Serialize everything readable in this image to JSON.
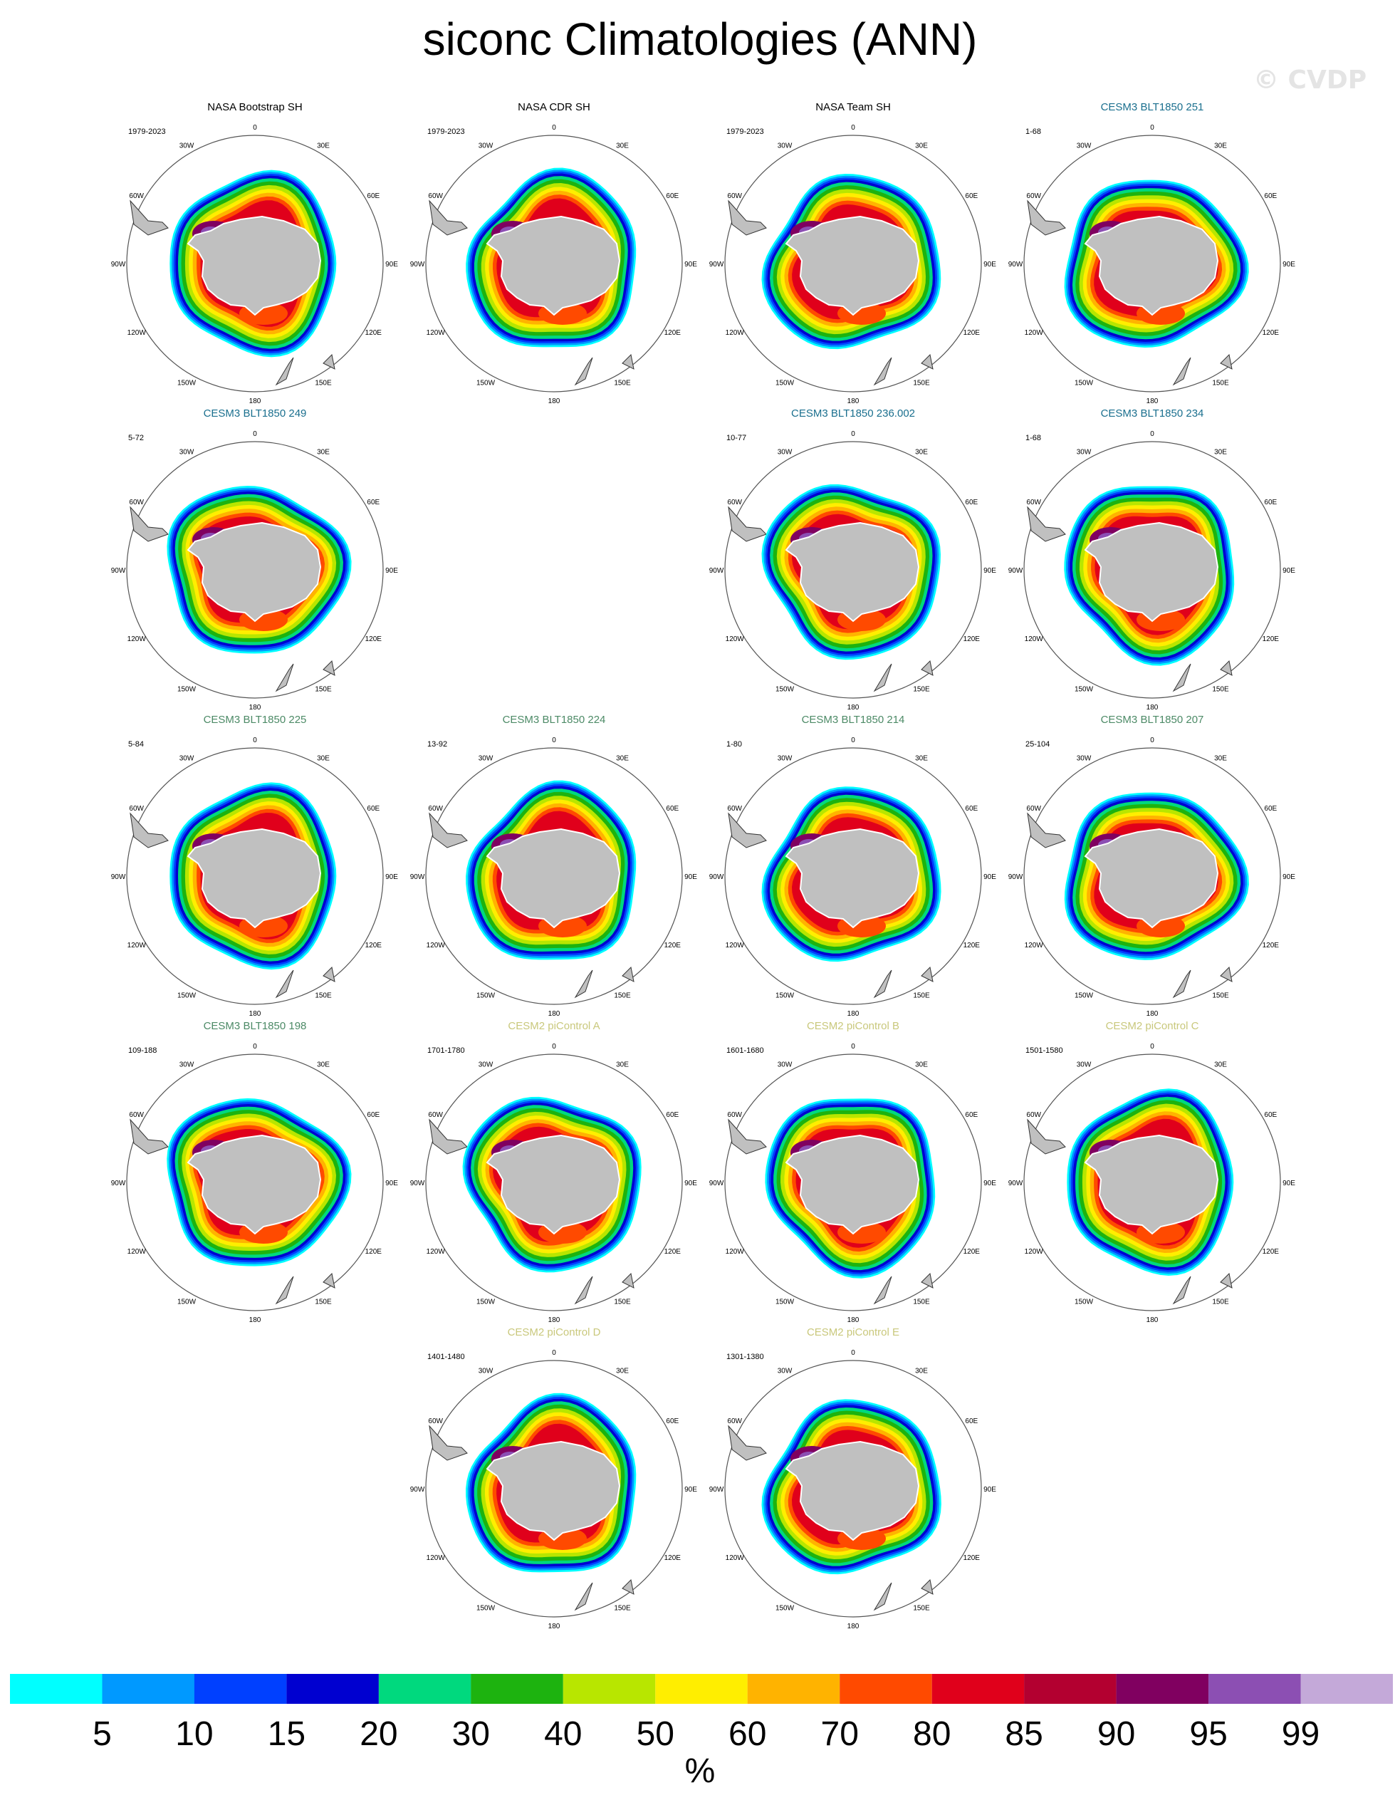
{
  "title": "siconc Climatologies (ANN)",
  "watermark": "© CVDP",
  "colors": {
    "obs_title": "#000000",
    "cesm3_251_title": "#1a6f8e",
    "cesm3_title": "#4c8a66",
    "cesm2_title": "#c9c87c",
    "land": "#c0c0c0"
  },
  "map_labels": [
    "0",
    "30E",
    "60E",
    "90E",
    "120E",
    "150E",
    "180",
    "150W",
    "120W",
    "90W",
    "60W",
    "30W"
  ],
  "panels": [
    {
      "title": "NASA Bootstrap SH",
      "years": "1979-2023",
      "title_color": "obs_title"
    },
    {
      "title": "NASA CDR SH",
      "years": "1979-2023",
      "title_color": "obs_title"
    },
    {
      "title": "NASA Team SH",
      "years": "1979-2023",
      "title_color": "obs_title"
    },
    {
      "title": "CESM3 BLT1850 251",
      "years": "1-68",
      "title_color": "cesm3_251_title"
    },
    {
      "title": "CESM3 BLT1850 249",
      "years": "5-72",
      "title_color": "cesm3_251_title"
    },
    {
      "title": "CESM3 BLT1850 236.002",
      "years": "10-77",
      "title_color": "cesm3_251_title"
    },
    {
      "title": "CESM3 BLT1850 234",
      "years": "1-68",
      "title_color": "cesm3_251_title"
    },
    {
      "title": "CESM3 BLT1850 225",
      "years": "5-84",
      "title_color": "cesm3_title"
    },
    {
      "title": "CESM3 BLT1850 224",
      "years": "13-92",
      "title_color": "cesm3_title"
    },
    {
      "title": "CESM3 BLT1850 214",
      "years": "1-80",
      "title_color": "cesm3_title"
    },
    {
      "title": "CESM3 BLT1850 207",
      "years": "25-104",
      "title_color": "cesm3_title"
    },
    {
      "title": "CESM3 BLT1850 198",
      "years": "109-188",
      "title_color": "cesm3_title"
    },
    {
      "title": "CESM2 piControl A",
      "years": "1701-1780",
      "title_color": "cesm2_title"
    },
    {
      "title": "CESM2 piControl B",
      "years": "1601-1680",
      "title_color": "cesm2_title"
    },
    {
      "title": "CESM2 piControl C",
      "years": "1501-1580",
      "title_color": "cesm2_title"
    },
    {
      "title": "CESM2 piControl D",
      "years": "1401-1480",
      "title_color": "cesm2_title"
    },
    {
      "title": "CESM2 piControl E",
      "years": "1301-1380",
      "title_color": "cesm2_title"
    }
  ],
  "colorbar": {
    "unit": "%",
    "labels": [
      "5",
      "10",
      "15",
      "20",
      "30",
      "40",
      "50",
      "60",
      "70",
      "80",
      "85",
      "90",
      "95",
      "99"
    ],
    "colors": [
      "#00ffff",
      "#0099ff",
      "#0040ff",
      "#0000d0",
      "#00d97e",
      "#1db30f",
      "#b8e600",
      "#ffee00",
      "#ffb300",
      "#ff4a00",
      "#e0001b",
      "#b30030",
      "#800060",
      "#8c4fb3",
      "#c4a9d9"
    ]
  },
  "chart_data": {
    "type": "heatmap",
    "title": "siconc Climatologies (ANN)",
    "variable": "siconc",
    "season": "ANN",
    "region": "Southern Hemisphere (polar stereographic)",
    "unit": "%",
    "contour_levels": [
      5,
      10,
      15,
      20,
      30,
      40,
      50,
      60,
      70,
      80,
      85,
      90,
      95,
      99
    ],
    "grid": "meridians every 30 degrees",
    "panels": [
      {
        "name": "NASA Bootstrap SH",
        "years": "1979-2023"
      },
      {
        "name": "NASA CDR SH",
        "years": "1979-2023"
      },
      {
        "name": "NASA Team SH",
        "years": "1979-2023"
      },
      {
        "name": "CESM3 BLT1850 251",
        "years": "1-68"
      },
      {
        "name": "CESM3 BLT1850 249",
        "years": "5-72"
      },
      {
        "name": "CESM3 BLT1850 236.002",
        "years": "10-77"
      },
      {
        "name": "CESM3 BLT1850 234",
        "years": "1-68"
      },
      {
        "name": "CESM3 BLT1850 225",
        "years": "5-84"
      },
      {
        "name": "CESM3 BLT1850 224",
        "years": "13-92"
      },
      {
        "name": "CESM3 BLT1850 214",
        "years": "1-80"
      },
      {
        "name": "CESM3 BLT1850 207",
        "years": "25-104"
      },
      {
        "name": "CESM3 BLT1850 198",
        "years": "109-188"
      },
      {
        "name": "CESM2 piControl A",
        "years": "1701-1780"
      },
      {
        "name": "CESM2 piControl B",
        "years": "1601-1680"
      },
      {
        "name": "CESM2 piControl C",
        "years": "1501-1580"
      },
      {
        "name": "CESM2 piControl D",
        "years": "1401-1480"
      },
      {
        "name": "CESM2 piControl E",
        "years": "1301-1380"
      }
    ]
  }
}
